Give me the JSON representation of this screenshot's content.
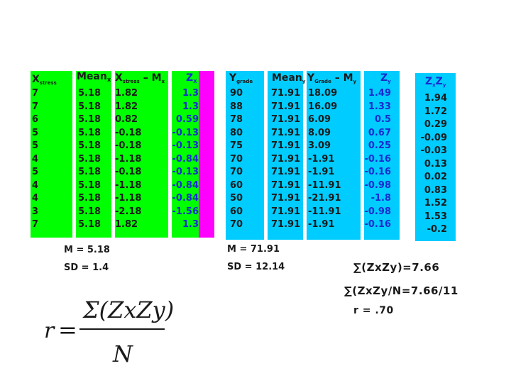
{
  "headers": {
    "x_main": "X",
    "x_sub": "stress",
    "mean_x_main": "Mean",
    "mean_x_sub": "X",
    "xdev_main": "X",
    "xdev_sub": "stress",
    "xdev_minus": "– M",
    "xdev_sub2": "x",
    "zx_main": "Z",
    "zx_sub": "X",
    "y_main": "Y",
    "y_sub": "grade",
    "mean_y_main": "Mean",
    "mean_y_sub": "y",
    "ydev_main": "Y",
    "ydev_sub": "Grade",
    "ydev_minus": "– M",
    "ydev_sub2": "y",
    "zy_main": "Z",
    "zy_sub": "y",
    "zxzy_main1": "Z",
    "zxzy_sub1": "x",
    "zxzy_main2": "Z",
    "zxzy_sub2": "y"
  },
  "columns": {
    "x": [
      "7",
      "7",
      "6",
      "5",
      "5",
      "4",
      "5",
      "4",
      "4",
      "3",
      "7"
    ],
    "mean_x": [
      "5.18",
      "5.18",
      "5.18",
      "5.18",
      "5.18",
      "5.18",
      "5.18",
      "5.18",
      "5.18",
      "5.18",
      "5.18"
    ],
    "xdev": [
      "1.82",
      "1.82",
      "0.82",
      "-0.18",
      "-0.18",
      "-1.18",
      "-0.18",
      "-1.18",
      "-1.18",
      "-2.18",
      "1.82"
    ],
    "zx": [
      "1.3",
      "1.3",
      "0.59",
      "-0.13",
      "-0.13",
      "-0.84",
      "-0.13",
      "-0.84",
      "-0.84",
      "-1.56",
      "1.3"
    ],
    "y": [
      "90",
      "88",
      "78",
      "80",
      "75",
      "70",
      "70",
      "60",
      "50",
      "60",
      "70"
    ],
    "mean_y": [
      "71.91",
      "71.91",
      "71.91",
      "71.91",
      "71.91",
      "71.91",
      "71.91",
      "71.91",
      "71.91",
      "71.91",
      "71.91"
    ],
    "ydev": [
      "18.09",
      "16.09",
      "6.09",
      "8.09",
      "3.09",
      "-1.91",
      "-1.91",
      "-11.91",
      "-21.91",
      "-11.91",
      "-1.91"
    ],
    "zy": [
      "1.49",
      "1.33",
      "0.5",
      "0.67",
      "0.25",
      "-0.16",
      "-0.16",
      "-0.98",
      "-1.8",
      "-0.98",
      "-0.16"
    ],
    "zxzy": [
      "1.94",
      "1.72",
      "0.29",
      "-0.09",
      "-0.03",
      "0.13",
      "0.02",
      "0.83",
      "1.52",
      "1.53",
      "-0.2"
    ]
  },
  "stats": {
    "m_x": "M = 5.18",
    "sd_x": "SD = 1.4",
    "m_y": "M = 71.91",
    "sd_y": "SD = 12.14"
  },
  "sums": {
    "line1": "∑(ZxZy)=7.66",
    "line2": "∑(ZxZy/N=7.66/11",
    "line3": "r  = .70"
  },
  "formula": {
    "lhs": "r",
    "equals": "=",
    "numerator": "Σ(ZxZy)",
    "denominator": "N"
  },
  "colors": {
    "green": "#00ff00",
    "magenta": "#ff00ff",
    "cyan": "#00ccff",
    "z_text": "#1a2ad0"
  }
}
